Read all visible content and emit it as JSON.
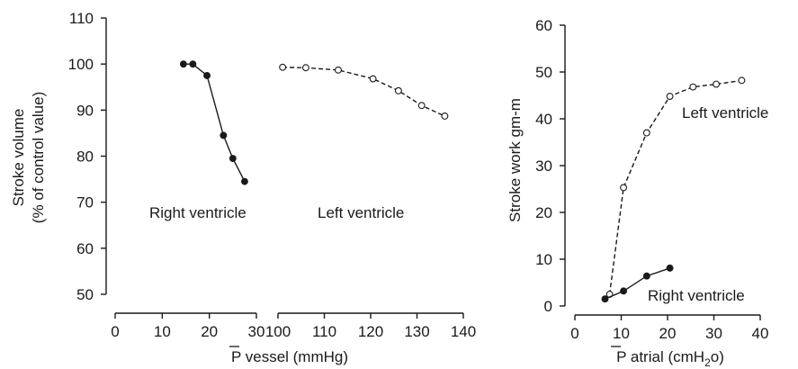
{
  "chart_data": [
    {
      "type": "line",
      "ylabel_line1": "Stroke volume",
      "ylabel_line2": "(% of control value)",
      "xlabel": "P vessel (mmHg)",
      "xlabel_overbar_char": "P",
      "xlabel_rest": " vessel (mmHg)",
      "ylim": [
        50,
        110
      ],
      "yticks": [
        50,
        60,
        70,
        80,
        90,
        100,
        110
      ],
      "xticks": [
        0,
        10,
        20,
        30,
        100,
        110,
        120,
        130,
        140
      ],
      "x_axis_break": "30 to 100",
      "grid": false,
      "series": [
        {
          "name": "Right ventricle",
          "marker": "filled",
          "linestyle": "solid",
          "x": [
            14.5,
            16.5,
            19.5,
            23,
            25,
            27.5
          ],
          "y": [
            100,
            100,
            97.5,
            84.5,
            79.5,
            74.5
          ]
        },
        {
          "name": "Left ventricle",
          "marker": "open",
          "linestyle": "dashed",
          "x": [
            101,
            106,
            113,
            120.5,
            126,
            131,
            136
          ],
          "y": [
            99.3,
            99.2,
            98.7,
            96.8,
            94.2,
            91,
            88.7
          ]
        }
      ]
    },
    {
      "type": "line",
      "ylabel": "Stroke work gm-m",
      "xlabel": "P atrial (cmH2o)",
      "xlabel_overbar_char": "P",
      "xlabel_rest_a": " atrial (cmH",
      "xlabel_sub": "2",
      "xlabel_rest_b": "o)",
      "ylim": [
        0,
        60
      ],
      "xlim": [
        0,
        40
      ],
      "yticks": [
        0,
        10,
        20,
        30,
        40,
        50,
        60
      ],
      "xticks": [
        0,
        10,
        20,
        30,
        40
      ],
      "grid": false,
      "series": [
        {
          "name": "Left ventricle",
          "marker": "open",
          "linestyle": "dashed",
          "x": [
            7.5,
            10.5,
            15.5,
            20.5,
            25.5,
            30.5,
            36
          ],
          "y": [
            2.5,
            25.3,
            37,
            44.8,
            46.8,
            47.4,
            48.2
          ]
        },
        {
          "name": "Right ventricle",
          "marker": "filled",
          "linestyle": "solid",
          "x": [
            6.5,
            10.5,
            15.5,
            20.5
          ],
          "y": [
            1.5,
            3.2,
            6.4,
            8.1
          ]
        }
      ]
    }
  ]
}
